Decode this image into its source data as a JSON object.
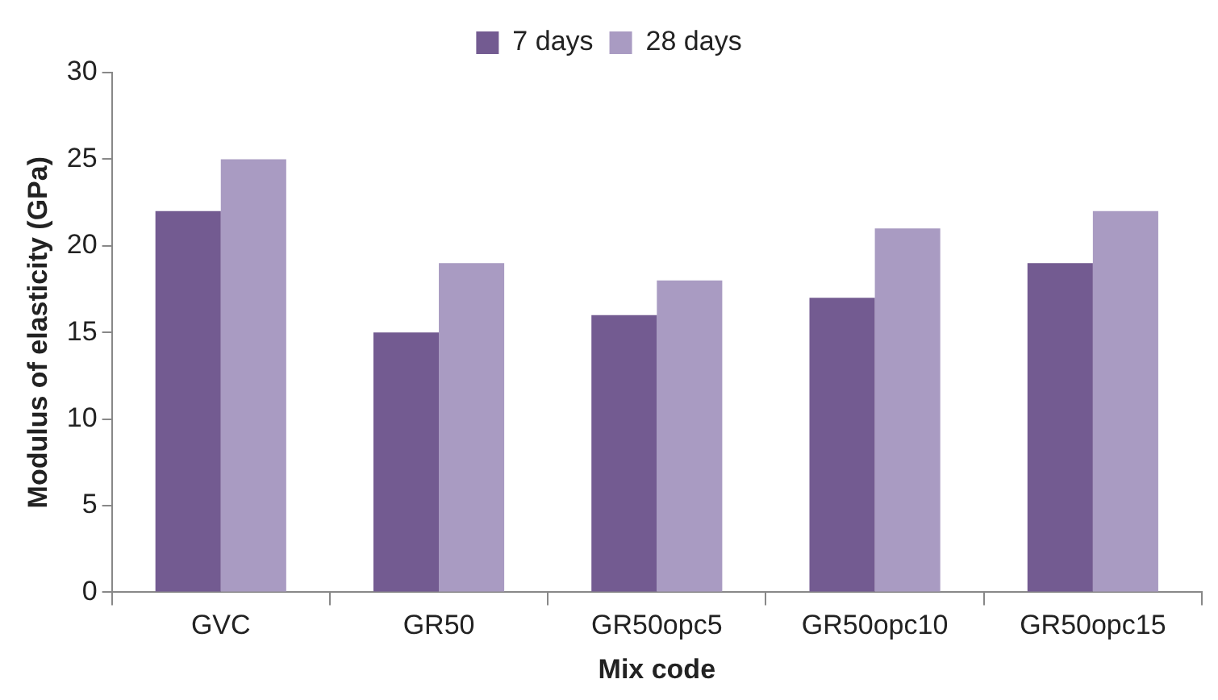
{
  "chart_data": {
    "type": "bar",
    "xlabel": "Mix code",
    "ylabel": "Modulus of elasticity (GPa)",
    "categories": [
      "GVC",
      "GR50",
      "GR50opc5",
      "GR50opc10",
      "GR50opc15"
    ],
    "series": [
      {
        "name": "7 days",
        "color": "#735b91",
        "values": [
          22,
          15,
          16,
          17,
          19
        ]
      },
      {
        "name": "28 days",
        "color": "#a99bc2",
        "values": [
          25,
          19,
          18,
          21,
          22
        ]
      }
    ],
    "ylim": [
      0,
      30
    ],
    "yticks": [
      0,
      5,
      10,
      15,
      20,
      25,
      30
    ],
    "grid": false,
    "legend": "top"
  }
}
